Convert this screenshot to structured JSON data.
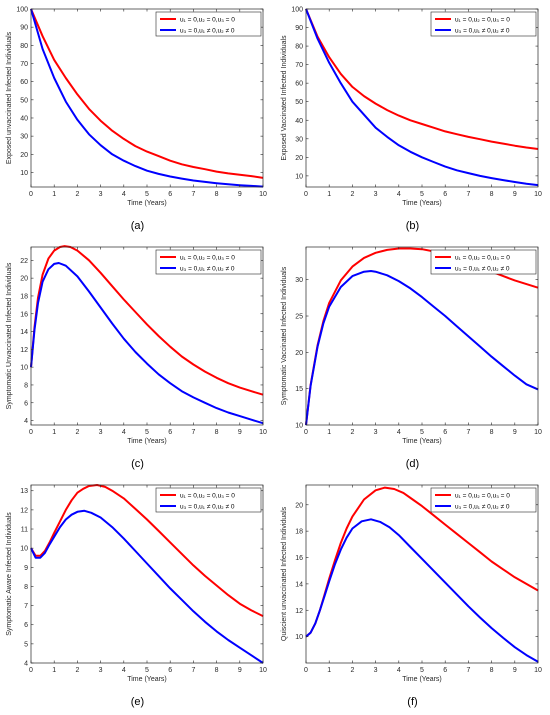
{
  "legend_labels": {
    "red": "u₁ = 0,u₂ = 0,u₃ = 0",
    "blue": "u₃ = 0,u₁ ≠ 0,u₂ ≠ 0"
  },
  "colors": {
    "red": "#ff0000",
    "blue": "#0000ff"
  },
  "chart_data": [
    {
      "type": "line",
      "caption": "(a)",
      "xlabel": "Time (Years)",
      "ylabel": "Exposed unvaccinated Infected Individuals",
      "xlim": [
        0,
        10
      ],
      "ylim": [
        2,
        100
      ],
      "xticks": [
        0,
        1,
        2,
        3,
        4,
        5,
        6,
        7,
        8,
        9,
        10
      ],
      "yticks": [
        10,
        20,
        30,
        40,
        50,
        60,
        70,
        80,
        90,
        100
      ],
      "legend_position": "top-right",
      "series": [
        {
          "name": "u₁ = 0,u₂ = 0,u₃ = 0",
          "color": "#ff0000",
          "x": [
            0,
            0.5,
            1,
            1.5,
            2,
            2.5,
            3,
            3.5,
            4,
            4.5,
            5,
            5.5,
            6,
            6.5,
            7,
            7.5,
            8,
            8.5,
            9,
            9.5,
            10
          ],
          "y": [
            100,
            85,
            72,
            62,
            53,
            45,
            38.5,
            33,
            28.5,
            24.5,
            21.5,
            19,
            16.5,
            14.5,
            13,
            11.8,
            10.5,
            9.5,
            8.7,
            8,
            7
          ]
        },
        {
          "name": "u₃ = 0,u₁ ≠ 0,u₂ ≠ 0",
          "color": "#0000ff",
          "x": [
            0,
            0.5,
            1,
            1.5,
            2,
            2.5,
            3,
            3.5,
            4,
            4.5,
            5,
            5.5,
            6,
            6.5,
            7,
            7.5,
            8,
            8.5,
            9,
            9.5,
            10
          ],
          "y": [
            100,
            78,
            62,
            49,
            39,
            31,
            25,
            20,
            16.5,
            13.5,
            11,
            9.2,
            7.8,
            6.6,
            5.6,
            4.8,
            4.1,
            3.5,
            3,
            2.6,
            2.2
          ]
        }
      ]
    },
    {
      "type": "line",
      "caption": "(b)",
      "xlabel": "Time (Years)",
      "ylabel": "Exposed Vaccinated Infected Individuals",
      "xlim": [
        0,
        10
      ],
      "ylim": [
        4,
        100
      ],
      "xticks": [
        0,
        1,
        2,
        3,
        4,
        5,
        6,
        7,
        8,
        9,
        10
      ],
      "yticks": [
        10,
        20,
        30,
        40,
        50,
        60,
        70,
        80,
        90,
        100
      ],
      "legend_position": "top-right",
      "series": [
        {
          "name": "u₁ = 0,u₂ = 0,u₃ = 0",
          "color": "#ff0000",
          "x": [
            0,
            0.5,
            1,
            1.5,
            2,
            2.5,
            3,
            3.5,
            4,
            4.5,
            5,
            5.5,
            6,
            6.5,
            7,
            7.5,
            8,
            8.5,
            9,
            9.5,
            10
          ],
          "y": [
            100,
            85,
            74,
            65,
            58,
            53,
            49,
            45.5,
            42.5,
            40,
            38,
            36,
            34,
            32.5,
            31,
            29.8,
            28.5,
            27.4,
            26.3,
            25.3,
            24.5
          ]
        },
        {
          "name": "u₃ = 0,u₁ ≠ 0,u₂ ≠ 0",
          "color": "#0000ff",
          "x": [
            0,
            0.5,
            1,
            1.5,
            2,
            2.5,
            3,
            3.5,
            4,
            4.5,
            5,
            5.5,
            6,
            6.5,
            7,
            7.5,
            8,
            8.5,
            9,
            9.5,
            10
          ],
          "y": [
            100,
            84,
            71,
            60,
            50,
            43,
            36,
            31,
            26.5,
            23,
            20,
            17.5,
            15,
            13,
            11.5,
            10,
            8.8,
            7.7,
            6.7,
            5.8,
            5
          ]
        }
      ]
    },
    {
      "type": "line",
      "caption": "(c)",
      "xlabel": "Time (Years)",
      "ylabel": "Symptomatic Unvaccinated Infected Individuals",
      "xlim": [
        0,
        10
      ],
      "ylim": [
        3.5,
        23.5
      ],
      "xticks": [
        0,
        1,
        2,
        3,
        4,
        5,
        6,
        7,
        8,
        9,
        10
      ],
      "yticks": [
        4,
        6,
        8,
        10,
        12,
        14,
        16,
        18,
        20,
        22
      ],
      "legend_position": "top-right",
      "series": [
        {
          "name": "u₁ = 0,u₂ = 0,u₃ = 0",
          "color": "#ff0000",
          "x": [
            0,
            0.15,
            0.3,
            0.5,
            0.75,
            1,
            1.25,
            1.45,
            1.7,
            2,
            2.5,
            3,
            3.5,
            4,
            4.5,
            5,
            5.5,
            6,
            6.5,
            7,
            7.5,
            8,
            8.5,
            9,
            9.5,
            10
          ],
          "y": [
            10,
            14.5,
            17.8,
            20.4,
            22.2,
            23.1,
            23.5,
            23.6,
            23.5,
            23.1,
            22,
            20.6,
            19.1,
            17.6,
            16.2,
            14.8,
            13.5,
            12.3,
            11.2,
            10.3,
            9.5,
            8.8,
            8.2,
            7.7,
            7.3,
            6.9
          ]
        },
        {
          "name": "u₃ = 0,u₁ ≠ 0,u₂ ≠ 0",
          "color": "#0000ff",
          "x": [
            0,
            0.15,
            0.3,
            0.5,
            0.75,
            1,
            1.2,
            1.5,
            2,
            2.5,
            3,
            3.5,
            4,
            4.5,
            5,
            5.5,
            6,
            6.5,
            7,
            7.5,
            8,
            8.5,
            9,
            9.5,
            10
          ],
          "y": [
            10,
            14.2,
            17.2,
            19.6,
            21,
            21.6,
            21.7,
            21.4,
            20.2,
            18.5,
            16.7,
            14.9,
            13.2,
            11.7,
            10.4,
            9.2,
            8.2,
            7.3,
            6.6,
            6,
            5.4,
            4.9,
            4.5,
            4.1,
            3.7
          ]
        }
      ]
    },
    {
      "type": "line",
      "caption": "(d)",
      "xlabel": "Time (Years)",
      "ylabel": "Symptomatic Vaccinated Infected Individuals",
      "xlim": [
        0,
        10
      ],
      "ylim": [
        10,
        34.5
      ],
      "xticks": [
        0,
        1,
        2,
        3,
        4,
        5,
        6,
        7,
        8,
        9,
        10
      ],
      "yticks": [
        10,
        15,
        20,
        25,
        30
      ],
      "legend_position": "top-right",
      "series": [
        {
          "name": "u₁ = 0,u₂ = 0,u₃ = 0",
          "color": "#ff0000",
          "x": [
            0,
            0.2,
            0.5,
            0.75,
            1,
            1.5,
            2,
            2.5,
            3,
            3.5,
            4,
            4.5,
            5,
            5.5,
            6,
            6.5,
            7,
            7.5,
            8,
            8.5,
            9,
            9.5,
            10
          ],
          "y": [
            10,
            15.5,
            21,
            24.3,
            26.8,
            29.9,
            31.8,
            33,
            33.7,
            34.1,
            34.3,
            34.3,
            34.2,
            33.9,
            33.4,
            32.9,
            32.3,
            31.7,
            31.1,
            30.5,
            29.9,
            29.4,
            28.9
          ]
        },
        {
          "name": "u₃ = 0,u₁ ≠ 0,u₂ ≠ 0",
          "color": "#0000ff",
          "x": [
            0,
            0.2,
            0.5,
            0.75,
            1,
            1.5,
            2,
            2.5,
            2.8,
            3,
            3.5,
            4,
            4.5,
            5,
            5.5,
            6,
            6.5,
            7,
            7.5,
            8,
            8.5,
            9,
            9.5,
            10
          ],
          "y": [
            10,
            15.4,
            20.8,
            24,
            26.3,
            29,
            30.5,
            31.1,
            31.2,
            31.1,
            30.6,
            29.8,
            28.8,
            27.6,
            26.3,
            25,
            23.6,
            22.2,
            20.8,
            19.4,
            18.1,
            16.8,
            15.6,
            14.9
          ]
        }
      ]
    },
    {
      "type": "line",
      "caption": "(e)",
      "xlabel": "Time (Years)",
      "ylabel": "Symptomatic Aware Infected Individuals",
      "xlim": [
        0,
        10
      ],
      "ylim": [
        4,
        13.3
      ],
      "xticks": [
        0,
        1,
        2,
        3,
        4,
        5,
        6,
        7,
        8,
        9,
        10
      ],
      "yticks": [
        4,
        5,
        6,
        7,
        8,
        9,
        10,
        11,
        12,
        13
      ],
      "legend_position": "top-right",
      "series": [
        {
          "name": "u₁ = 0,u₂ = 0,u₃ = 0",
          "color": "#ff0000",
          "x": [
            0,
            0.2,
            0.4,
            0.6,
            0.8,
            1,
            1.25,
            1.5,
            1.75,
            2,
            2.25,
            2.5,
            2.85,
            3.2,
            3.5,
            4,
            4.5,
            5,
            5.5,
            6,
            6.5,
            7,
            7.5,
            8,
            8.5,
            9,
            9.5,
            10
          ],
          "y": [
            10,
            9.6,
            9.6,
            9.85,
            10.3,
            10.8,
            11.4,
            12,
            12.5,
            12.9,
            13.1,
            13.25,
            13.3,
            13.2,
            13,
            12.6,
            12.05,
            11.5,
            10.9,
            10.3,
            9.7,
            9.1,
            8.55,
            8.05,
            7.55,
            7.1,
            6.75,
            6.45
          ]
        },
        {
          "name": "u₃ = 0,u₁ ≠ 0,u₂ ≠ 0",
          "color": "#0000ff",
          "x": [
            0,
            0.2,
            0.4,
            0.6,
            0.8,
            1,
            1.25,
            1.5,
            1.75,
            2,
            2.3,
            2.6,
            3,
            3.5,
            4,
            4.5,
            5,
            5.5,
            6,
            6.5,
            7,
            7.5,
            8,
            8.5,
            9,
            9.5,
            10
          ],
          "y": [
            10,
            9.5,
            9.5,
            9.75,
            10.2,
            10.6,
            11.1,
            11.5,
            11.75,
            11.9,
            11.95,
            11.85,
            11.6,
            11.1,
            10.5,
            9.85,
            9.2,
            8.55,
            7.9,
            7.3,
            6.7,
            6.15,
            5.65,
            5.2,
            4.8,
            4.4,
            4
          ]
        }
      ]
    },
    {
      "type": "line",
      "caption": "(f)",
      "xlabel": "Time (Years)",
      "ylabel": "Quiscient unvaccinated Infected Individuals",
      "xlim": [
        0,
        10
      ],
      "ylim": [
        8,
        21.5
      ],
      "xticks": [
        0,
        1,
        2,
        3,
        4,
        5,
        6,
        7,
        8,
        9,
        10
      ],
      "yticks": [
        10,
        12,
        14,
        16,
        18,
        20
      ],
      "legend_position": "top-right",
      "series": [
        {
          "name": "u₁ = 0,u₂ = 0,u₃ = 0",
          "color": "#ff0000",
          "x": [
            0,
            0.2,
            0.4,
            0.6,
            0.8,
            1,
            1.25,
            1.5,
            1.75,
            2,
            2.5,
            3,
            3.4,
            3.8,
            4.2,
            4.6,
            5,
            5.5,
            6,
            6.5,
            7,
            7.5,
            8,
            8.5,
            9,
            9.5,
            10
          ],
          "y": [
            10,
            10.3,
            11,
            12,
            13.2,
            14.4,
            15.8,
            17.1,
            18.2,
            19.1,
            20.4,
            21.1,
            21.3,
            21.2,
            20.9,
            20.4,
            19.9,
            19.2,
            18.5,
            17.8,
            17.1,
            16.4,
            15.7,
            15.1,
            14.5,
            14,
            13.5
          ]
        },
        {
          "name": "u₃ = 0,u₁ ≠ 0,u₂ ≠ 0",
          "color": "#0000ff",
          "x": [
            0,
            0.2,
            0.4,
            0.6,
            0.8,
            1,
            1.25,
            1.5,
            1.75,
            2,
            2.4,
            2.8,
            3.2,
            3.6,
            4,
            4.5,
            5,
            5.5,
            6,
            6.5,
            7,
            7.5,
            8,
            8.5,
            9,
            9.5,
            10
          ],
          "y": [
            10,
            10.3,
            11,
            12,
            13.1,
            14.2,
            15.5,
            16.6,
            17.5,
            18.2,
            18.75,
            18.9,
            18.7,
            18.3,
            17.7,
            16.8,
            15.9,
            15,
            14.1,
            13.2,
            12.3,
            11.45,
            10.65,
            9.9,
            9.2,
            8.6,
            8.1
          ]
        }
      ]
    }
  ]
}
